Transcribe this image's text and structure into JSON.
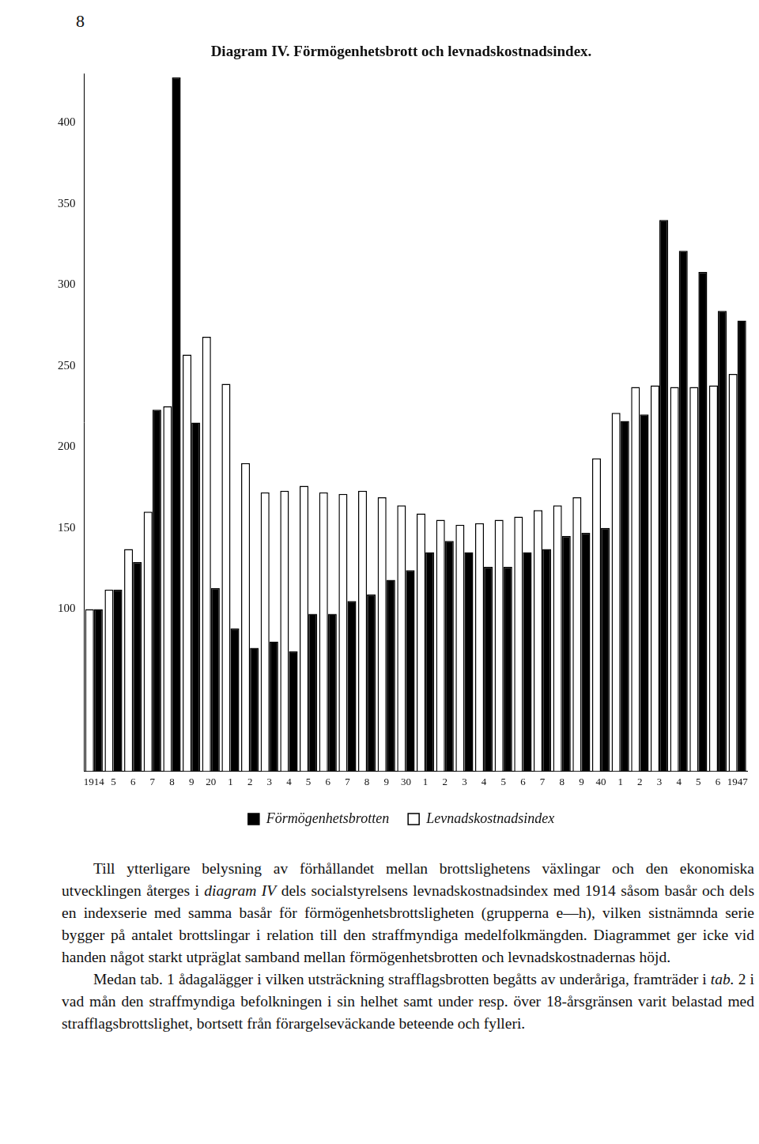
{
  "page_number": "8",
  "chart_data": {
    "type": "bar",
    "title": "Diagram IV. Förmögenhetsbrott och levnadskostnadsindex.",
    "categories": [
      "1914",
      "5",
      "6",
      "7",
      "8",
      "9",
      "20",
      "1",
      "2",
      "3",
      "4",
      "5",
      "6",
      "7",
      "8",
      "9",
      "30",
      "1",
      "2",
      "3",
      "4",
      "5",
      "6",
      "7",
      "8",
      "9",
      "40",
      "1",
      "2",
      "3",
      "4",
      "5",
      "6",
      "1947"
    ],
    "series": [
      {
        "name": "Levnadskostnadsindex",
        "color": "#ffffff",
        "values": [
          100,
          112,
          137,
          160,
          225,
          257,
          268,
          239,
          190,
          172,
          173,
          176,
          172,
          171,
          173,
          169,
          164,
          159,
          155,
          152,
          153,
          155,
          157,
          161,
          164,
          169,
          193,
          221,
          237,
          238,
          237,
          237,
          238,
          245
        ]
      },
      {
        "name": "Förmögenhetsbrotten",
        "color": "#000000",
        "values": [
          100,
          112,
          129,
          223,
          428,
          215,
          113,
          88,
          76,
          80,
          74,
          97,
          97,
          105,
          109,
          118,
          124,
          135,
          142,
          135,
          126,
          126,
          135,
          137,
          145,
          147,
          150,
          216,
          220,
          340,
          321,
          308,
          284,
          278
        ]
      }
    ],
    "ylim": [
      0,
      430
    ],
    "yticks": [
      100,
      150,
      200,
      250,
      300,
      350,
      400
    ],
    "grid": false,
    "legend": "bottom"
  },
  "paragraphs": [
    [
      {
        "text": "Till ytterligare belysning av förhållandet mellan brottslighetens växlingar och den ekonomiska utvecklingen återges i "
      },
      {
        "text": "diagram IV",
        "italic": true
      },
      {
        "text": " dels socialstyrelsens levnadskostnadsindex med 1914 såsom basår och dels en indexserie med samma basår för förmögenhetsbrottsligheten (grupperna e—h), vilken sistnämnda serie bygger på antalet brottslingar i relation till den straffmyndiga medelfolkmängden. Diagrammet ger icke vid handen något starkt utpräglat samband mellan förmögenhetsbrotten och levnadskostnadernas höjd."
      }
    ],
    [
      {
        "text": "Medan tab. 1 ådagalägger i vilken utsträckning strafflagsbrotten begåtts av underåriga, framträder i "
      },
      {
        "text": "tab.",
        "italic": true
      },
      {
        "text": " 2 i vad mån den straffmyndiga befolkningen i sin helhet samt under resp. över 18-årsgränsen varit belastad med strafflagsbrottslighet, bortsett från förargelseväckande beteende och fylleri."
      }
    ]
  ]
}
